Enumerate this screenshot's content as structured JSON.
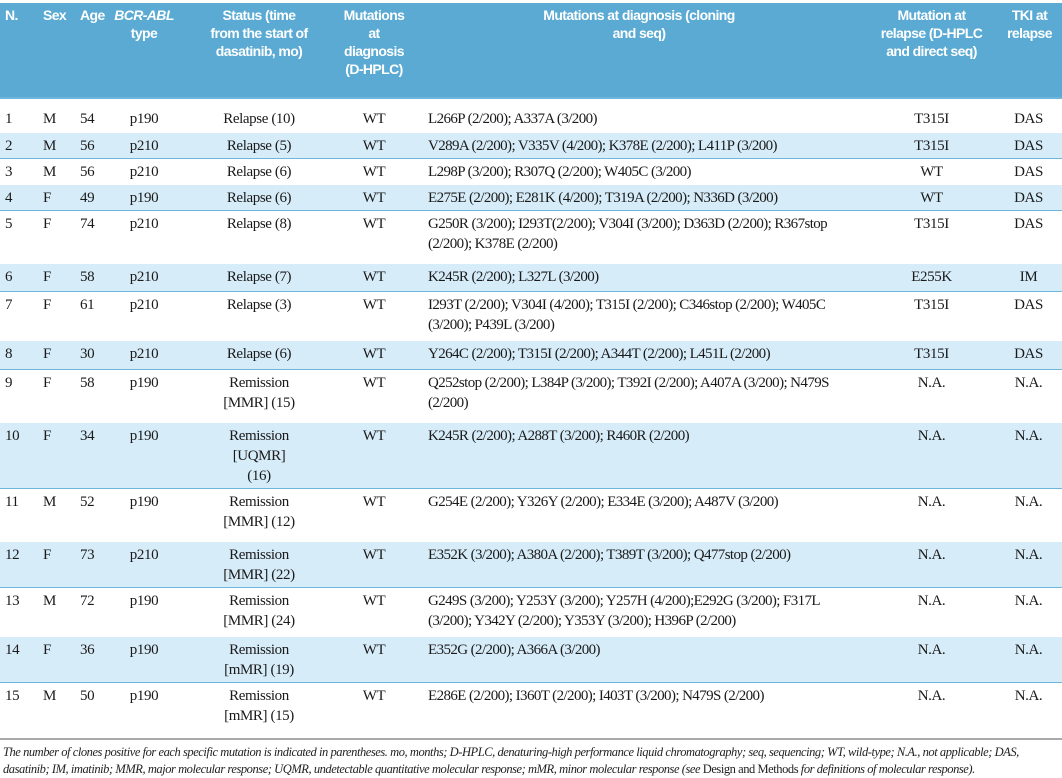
{
  "table": {
    "headers": {
      "n": "N.",
      "sex": "Sex",
      "age": "Age",
      "bcr_abl": "BCR-ABL",
      "bcr_abl_sub": "type",
      "status": "Status (time from the start of dasatinib, mo)",
      "mut_dhplc": "Mutations at diagnosis (D-HPLC)",
      "mut_cloning": "Mutations at diagnosis (cloning and seq)",
      "mut_relapse": "Mutation at relapse (D-HPLC and direct seq)",
      "tki": "TKI at relapse"
    },
    "rows": [
      {
        "n": "1",
        "sex": "M",
        "age": "54",
        "type": "p190",
        "status": "Relapse (10)",
        "dhplc": "WT",
        "mutations": "L266P (2/200); A337A (3/200)",
        "relapse": "T315I",
        "tki": "DAS"
      },
      {
        "n": "2",
        "sex": "M",
        "age": "56",
        "type": "p210",
        "status": "Relapse (5)",
        "dhplc": "WT",
        "mutations": "V289A (2/200); V335V (4/200); K378E (2/200); L411P (3/200)",
        "relapse": "T315I",
        "tki": "DAS"
      },
      {
        "n": "3",
        "sex": "M",
        "age": "56",
        "type": "p210",
        "status": "Relapse (6)",
        "dhplc": "WT",
        "mutations": "L298P (3/200); R307Q (2/200); W405C (3/200)",
        "relapse": "WT",
        "tki": "DAS"
      },
      {
        "n": "4",
        "sex": "F",
        "age": "49",
        "type": "p190",
        "status": "Relapse (6)",
        "dhplc": "WT",
        "mutations": "E275E (2/200); E281K (4/200); T319A (2/200); N336D (3/200)",
        "relapse": "WT",
        "tki": "DAS"
      },
      {
        "n": "5",
        "sex": "F",
        "age": "74",
        "type": "p210",
        "status": "Relapse (8)",
        "dhplc": "WT",
        "mutations": "G250R (3/200); I293T(2/200); V304I (3/200); D363D (2/200); R367stop (2/200); K378E (2/200)",
        "relapse": "T315I",
        "tki": "DAS"
      },
      {
        "n": "6",
        "sex": "F",
        "age": "58",
        "type": "p210",
        "status": "Relapse (7)",
        "dhplc": "WT",
        "mutations": "K245R (2/200); L327L (3/200)",
        "relapse": "E255K",
        "tki": "IM"
      },
      {
        "n": "7",
        "sex": "F",
        "age": "61",
        "type": "p210",
        "status": "Relapse (3)",
        "dhplc": "WT",
        "mutations": "I293T (2/200); V304I (4/200); T315I (2/200); C346stop (2/200); W405C (3/200); P439L (3/200)",
        "relapse": "T315I",
        "tki": "DAS"
      },
      {
        "n": "8",
        "sex": "F",
        "age": "30",
        "type": "p210",
        "status": "Relapse (6)",
        "dhplc": "WT",
        "mutations": "Y264C (2/200); T315I (2/200); A344T (2/200); L451L (2/200)",
        "relapse": "T315I",
        "tki": "DAS"
      },
      {
        "n": "9",
        "sex": "F",
        "age": "58",
        "type": "p190",
        "status": "Remission [MMR] (15)",
        "dhplc": "WT",
        "mutations": "Q252stop (2/200); L384P (3/200); T392I (2/200); A407A (3/200); N479S (2/200)",
        "relapse": "N.A.",
        "tki": "N.A."
      },
      {
        "n": "10",
        "sex": "F",
        "age": "34",
        "type": "p190",
        "status": "Remission [UQMR] (16)",
        "dhplc": "WT",
        "mutations": "K245R (2/200); A288T (3/200); R460R (2/200)",
        "relapse": "N.A.",
        "tki": "N.A."
      },
      {
        "n": "11",
        "sex": "M",
        "age": "52",
        "type": "p190",
        "status": "Remission [MMR] (12)",
        "dhplc": "WT",
        "mutations": "G254E (2/200); Y326Y (2/200); E334E (3/200); A487V (3/200)",
        "relapse": "N.A.",
        "tki": "N.A."
      },
      {
        "n": "12",
        "sex": "F",
        "age": "73",
        "type": "p210",
        "status": "Remission [MMR] (22)",
        "dhplc": "WT",
        "mutations": "E352K (3/200); A380A (2/200); T389T (3/200); Q477stop (2/200)",
        "relapse": "N.A.",
        "tki": "N.A."
      },
      {
        "n": "13",
        "sex": "M",
        "age": "72",
        "type": "p190",
        "status": "Remission [MMR] (24)",
        "dhplc": "WT",
        "mutations": "G249S (3/200); Y253Y (3/200); Y257H (4/200);E292G (3/200); F317L (3/200); Y342Y (2/200); Y353Y (3/200); H396P (2/200)",
        "relapse": "N.A.",
        "tki": "N.A."
      },
      {
        "n": "14",
        "sex": "F",
        "age": "36",
        "type": "p190",
        "status": "Remission [mMR] (19)",
        "dhplc": "WT",
        "mutations": "E352G (2/200); A366A (3/200)",
        "relapse": "N.A.",
        "tki": "N.A."
      },
      {
        "n": "15",
        "sex": "M",
        "age": "50",
        "type": "p190",
        "status": "Remission [mMR] (15)",
        "dhplc": "WT",
        "mutations": "E286E (2/200); I360T (2/200); I403T (3/200); N479S (2/200)",
        "relapse": "N.A.",
        "tki": "N.A."
      }
    ]
  },
  "caption": {
    "part1": "The number of clones positive for each specific mutation is indicated in parentheses. mo, months; D-HPLC, denaturing-high performance liquid chromatography; seq, sequencing; WT, wild-type; N.A., not applicable; DAS, dasatinib; IM, imatinib; MMR, major molecular response; UQMR, undetectable quantitative molecular response; mMR, minor molecular response (see ",
    "upright": "Design and Methods",
    "part2": " for definitions of molecular response)."
  },
  "colors": {
    "header_bg": "#5aaad3",
    "shaded_row": "#d7ecf9",
    "row_border": "#6fb6dc"
  }
}
